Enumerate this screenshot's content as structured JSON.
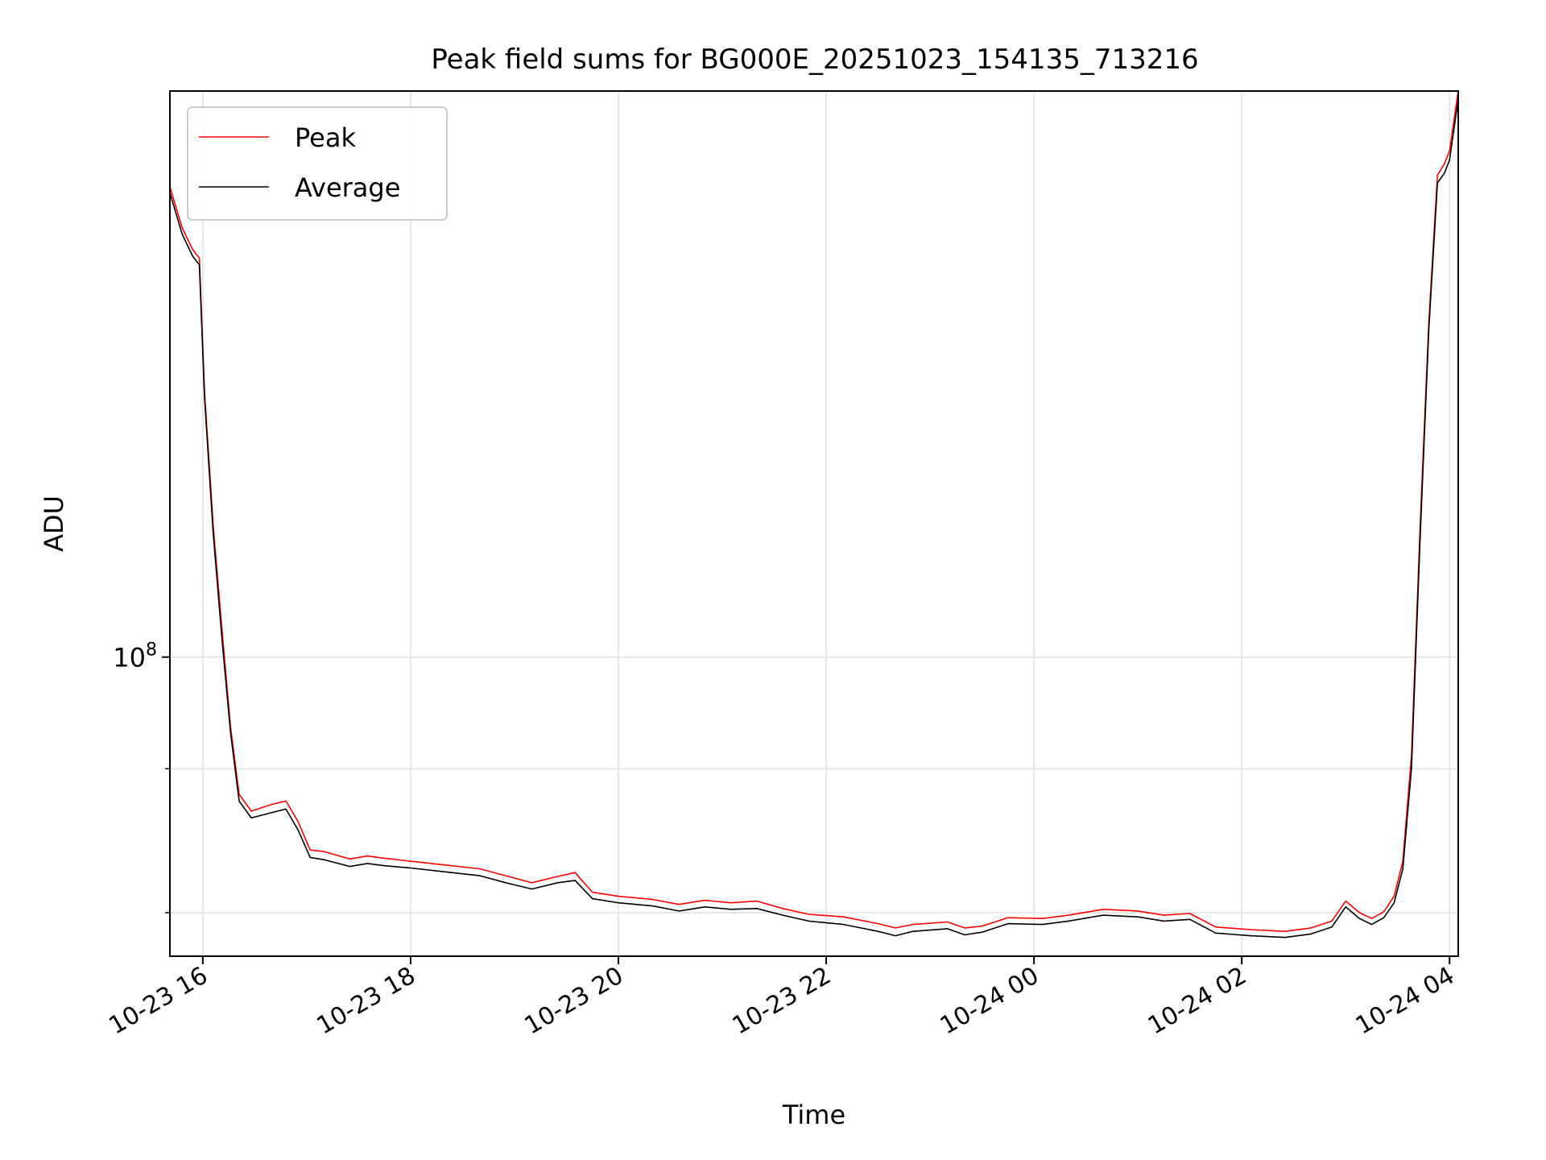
{
  "chart_data": {
    "type": "line",
    "title": "Peak field sums for BG000E_20251023_154135_713216",
    "xlabel": "Time",
    "ylabel": "ADU",
    "y_scale": "log",
    "y_range": [
      55000000,
      310000000
    ],
    "x_range": [
      "2025-10-23 15:41",
      "2025-10-24 04:05"
    ],
    "x_ticks": [
      {
        "t": "2025-10-23 16:00",
        "label": "10-23 16"
      },
      {
        "t": "2025-10-23 18:00",
        "label": "10-23 18"
      },
      {
        "t": "2025-10-23 20:00",
        "label": "10-23 20"
      },
      {
        "t": "2025-10-23 22:00",
        "label": "10-23 22"
      },
      {
        "t": "2025-10-24 00:00",
        "label": "10-24 00"
      },
      {
        "t": "2025-10-24 02:00",
        "label": "10-24 02"
      },
      {
        "t": "2025-10-24 04:00",
        "label": "10-24 04"
      }
    ],
    "y_major_ticks": [
      {
        "value": 100000000,
        "base": "10",
        "exp": "8"
      }
    ],
    "y_minor_ticks": [
      80000000,
      60000000
    ],
    "grid": true,
    "legend_position": "top-left",
    "series": [
      {
        "name": "Peak",
        "color": "#ff0000",
        "points": [
          [
            "2025-10-23 15:41",
            256000000
          ],
          [
            "2025-10-23 15:48",
            236000000
          ],
          [
            "2025-10-23 15:54",
            226000000
          ],
          [
            "2025-10-23 15:58",
            222000000
          ],
          [
            "2025-10-23 16:01",
            170000000
          ],
          [
            "2025-10-23 16:06",
            130000000
          ],
          [
            "2025-10-23 16:11",
            106000000
          ],
          [
            "2025-10-23 16:16",
            87000000
          ],
          [
            "2025-10-23 16:21",
            76000000
          ],
          [
            "2025-10-23 16:28",
            73500000
          ],
          [
            "2025-10-23 16:40",
            74500000
          ],
          [
            "2025-10-23 16:48",
            75000000
          ],
          [
            "2025-10-23 16:55",
            72000000
          ],
          [
            "2025-10-23 17:02",
            68000000
          ],
          [
            "2025-10-23 17:10",
            67800000
          ],
          [
            "2025-10-23 17:25",
            66800000
          ],
          [
            "2025-10-23 17:35",
            67200000
          ],
          [
            "2025-10-23 17:45",
            66900000
          ],
          [
            "2025-10-23 18:00",
            66500000
          ],
          [
            "2025-10-23 18:20",
            66000000
          ],
          [
            "2025-10-23 18:40",
            65500000
          ],
          [
            "2025-10-23 18:55",
            64600000
          ],
          [
            "2025-10-23 19:10",
            63700000
          ],
          [
            "2025-10-23 19:25",
            64500000
          ],
          [
            "2025-10-23 19:35",
            65000000
          ],
          [
            "2025-10-23 19:45",
            62500000
          ],
          [
            "2025-10-23 20:00",
            62000000
          ],
          [
            "2025-10-23 20:20",
            61600000
          ],
          [
            "2025-10-23 20:35",
            61000000
          ],
          [
            "2025-10-23 20:50",
            61500000
          ],
          [
            "2025-10-23 21:05",
            61200000
          ],
          [
            "2025-10-23 21:20",
            61400000
          ],
          [
            "2025-10-23 21:35",
            60500000
          ],
          [
            "2025-10-23 21:50",
            59800000
          ],
          [
            "2025-10-23 22:10",
            59500000
          ],
          [
            "2025-10-23 22:30",
            58700000
          ],
          [
            "2025-10-23 22:40",
            58200000
          ],
          [
            "2025-10-23 22:50",
            58600000
          ],
          [
            "2025-10-23 23:10",
            58900000
          ],
          [
            "2025-10-23 23:20",
            58200000
          ],
          [
            "2025-10-23 23:30",
            58400000
          ],
          [
            "2025-10-23 23:45",
            59400000
          ],
          [
            "2025-10-24 00:05",
            59300000
          ],
          [
            "2025-10-24 00:20",
            59700000
          ],
          [
            "2025-10-24 00:40",
            60400000
          ],
          [
            "2025-10-24 01:00",
            60200000
          ],
          [
            "2025-10-24 01:15",
            59700000
          ],
          [
            "2025-10-24 01:30",
            59900000
          ],
          [
            "2025-10-24 01:45",
            58300000
          ],
          [
            "2025-10-24 02:05",
            58000000
          ],
          [
            "2025-10-24 02:25",
            57800000
          ],
          [
            "2025-10-24 02:40",
            58200000
          ],
          [
            "2025-10-24 02:52",
            59000000
          ],
          [
            "2025-10-24 03:00",
            61400000
          ],
          [
            "2025-10-24 03:08",
            60000000
          ],
          [
            "2025-10-24 03:15",
            59300000
          ],
          [
            "2025-10-24 03:22",
            60100000
          ],
          [
            "2025-10-24 03:28",
            62000000
          ],
          [
            "2025-10-24 03:33",
            66500000
          ],
          [
            "2025-10-24 03:38",
            82000000
          ],
          [
            "2025-10-24 03:43",
            130000000
          ],
          [
            "2025-10-24 03:48",
            195000000
          ],
          [
            "2025-10-24 03:53",
            262000000
          ],
          [
            "2025-10-24 03:57",
            268000000
          ],
          [
            "2025-10-24 04:00",
            275000000
          ],
          [
            "2025-10-24 04:05",
            310000000
          ]
        ]
      },
      {
        "name": "Average",
        "color": "#000000",
        "points": [
          [
            "2025-10-23 15:41",
            253000000
          ],
          [
            "2025-10-23 15:48",
            233000000
          ],
          [
            "2025-10-23 15:54",
            223000000
          ],
          [
            "2025-10-23 15:58",
            219000000
          ],
          [
            "2025-10-23 16:01",
            168000000
          ],
          [
            "2025-10-23 16:06",
            128000000
          ],
          [
            "2025-10-23 16:11",
            104000000
          ],
          [
            "2025-10-23 16:16",
            86000000
          ],
          [
            "2025-10-23 16:21",
            75000000
          ],
          [
            "2025-10-23 16:28",
            72500000
          ],
          [
            "2025-10-23 16:40",
            73300000
          ],
          [
            "2025-10-23 16:48",
            73800000
          ],
          [
            "2025-10-23 16:55",
            70800000
          ],
          [
            "2025-10-23 17:02",
            67000000
          ],
          [
            "2025-10-23 17:10",
            66700000
          ],
          [
            "2025-10-23 17:25",
            65800000
          ],
          [
            "2025-10-23 17:35",
            66200000
          ],
          [
            "2025-10-23 17:45",
            65900000
          ],
          [
            "2025-10-23 18:00",
            65600000
          ],
          [
            "2025-10-23 18:20",
            65100000
          ],
          [
            "2025-10-23 18:40",
            64600000
          ],
          [
            "2025-10-23 18:55",
            63700000
          ],
          [
            "2025-10-23 19:10",
            62900000
          ],
          [
            "2025-10-23 19:25",
            63700000
          ],
          [
            "2025-10-23 19:35",
            64000000
          ],
          [
            "2025-10-23 19:45",
            61700000
          ],
          [
            "2025-10-23 20:00",
            61200000
          ],
          [
            "2025-10-23 20:20",
            60800000
          ],
          [
            "2025-10-23 20:35",
            60200000
          ],
          [
            "2025-10-23 20:50",
            60700000
          ],
          [
            "2025-10-23 21:05",
            60400000
          ],
          [
            "2025-10-23 21:20",
            60500000
          ],
          [
            "2025-10-23 21:35",
            59700000
          ],
          [
            "2025-10-23 21:50",
            59000000
          ],
          [
            "2025-10-23 22:10",
            58600000
          ],
          [
            "2025-10-23 22:30",
            57800000
          ],
          [
            "2025-10-23 22:40",
            57300000
          ],
          [
            "2025-10-23 22:50",
            57800000
          ],
          [
            "2025-10-23 23:10",
            58100000
          ],
          [
            "2025-10-23 23:20",
            57400000
          ],
          [
            "2025-10-23 23:30",
            57700000
          ],
          [
            "2025-10-23 23:45",
            58700000
          ],
          [
            "2025-10-24 00:05",
            58600000
          ],
          [
            "2025-10-24 00:20",
            59000000
          ],
          [
            "2025-10-24 00:40",
            59700000
          ],
          [
            "2025-10-24 01:00",
            59500000
          ],
          [
            "2025-10-24 01:15",
            59000000
          ],
          [
            "2025-10-24 01:30",
            59200000
          ],
          [
            "2025-10-24 01:45",
            57600000
          ],
          [
            "2025-10-24 02:05",
            57300000
          ],
          [
            "2025-10-24 02:25",
            57100000
          ],
          [
            "2025-10-24 02:40",
            57500000
          ],
          [
            "2025-10-24 02:52",
            58300000
          ],
          [
            "2025-10-24 03:00",
            60700000
          ],
          [
            "2025-10-24 03:08",
            59300000
          ],
          [
            "2025-10-24 03:15",
            58600000
          ],
          [
            "2025-10-24 03:22",
            59400000
          ],
          [
            "2025-10-24 03:28",
            61200000
          ],
          [
            "2025-10-24 03:33",
            65500000
          ],
          [
            "2025-10-24 03:38",
            80000000
          ],
          [
            "2025-10-24 03:43",
            127000000
          ],
          [
            "2025-10-24 03:48",
            192000000
          ],
          [
            "2025-10-24 03:53",
            258000000
          ],
          [
            "2025-10-24 03:57",
            263000000
          ],
          [
            "2025-10-24 04:00",
            270000000
          ],
          [
            "2025-10-24 04:05",
            305000000
          ]
        ]
      }
    ]
  }
}
